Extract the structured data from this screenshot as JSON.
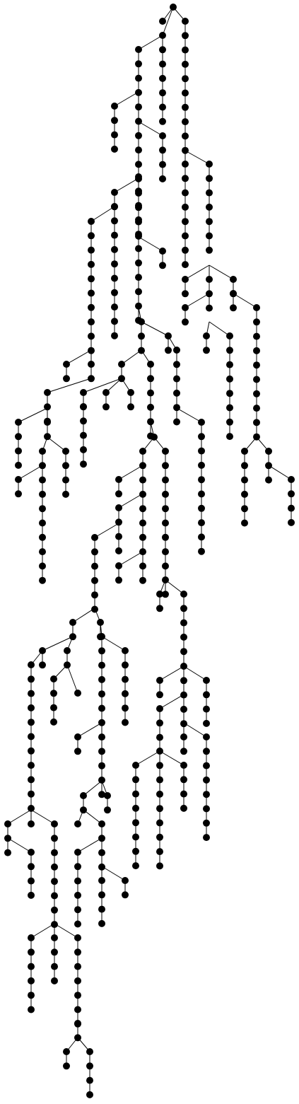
{
  "diagram": {
    "type": "tree",
    "node_color": "#000000",
    "edge_color": "#000000",
    "background": "#ffffff",
    "labels": []
  }
}
